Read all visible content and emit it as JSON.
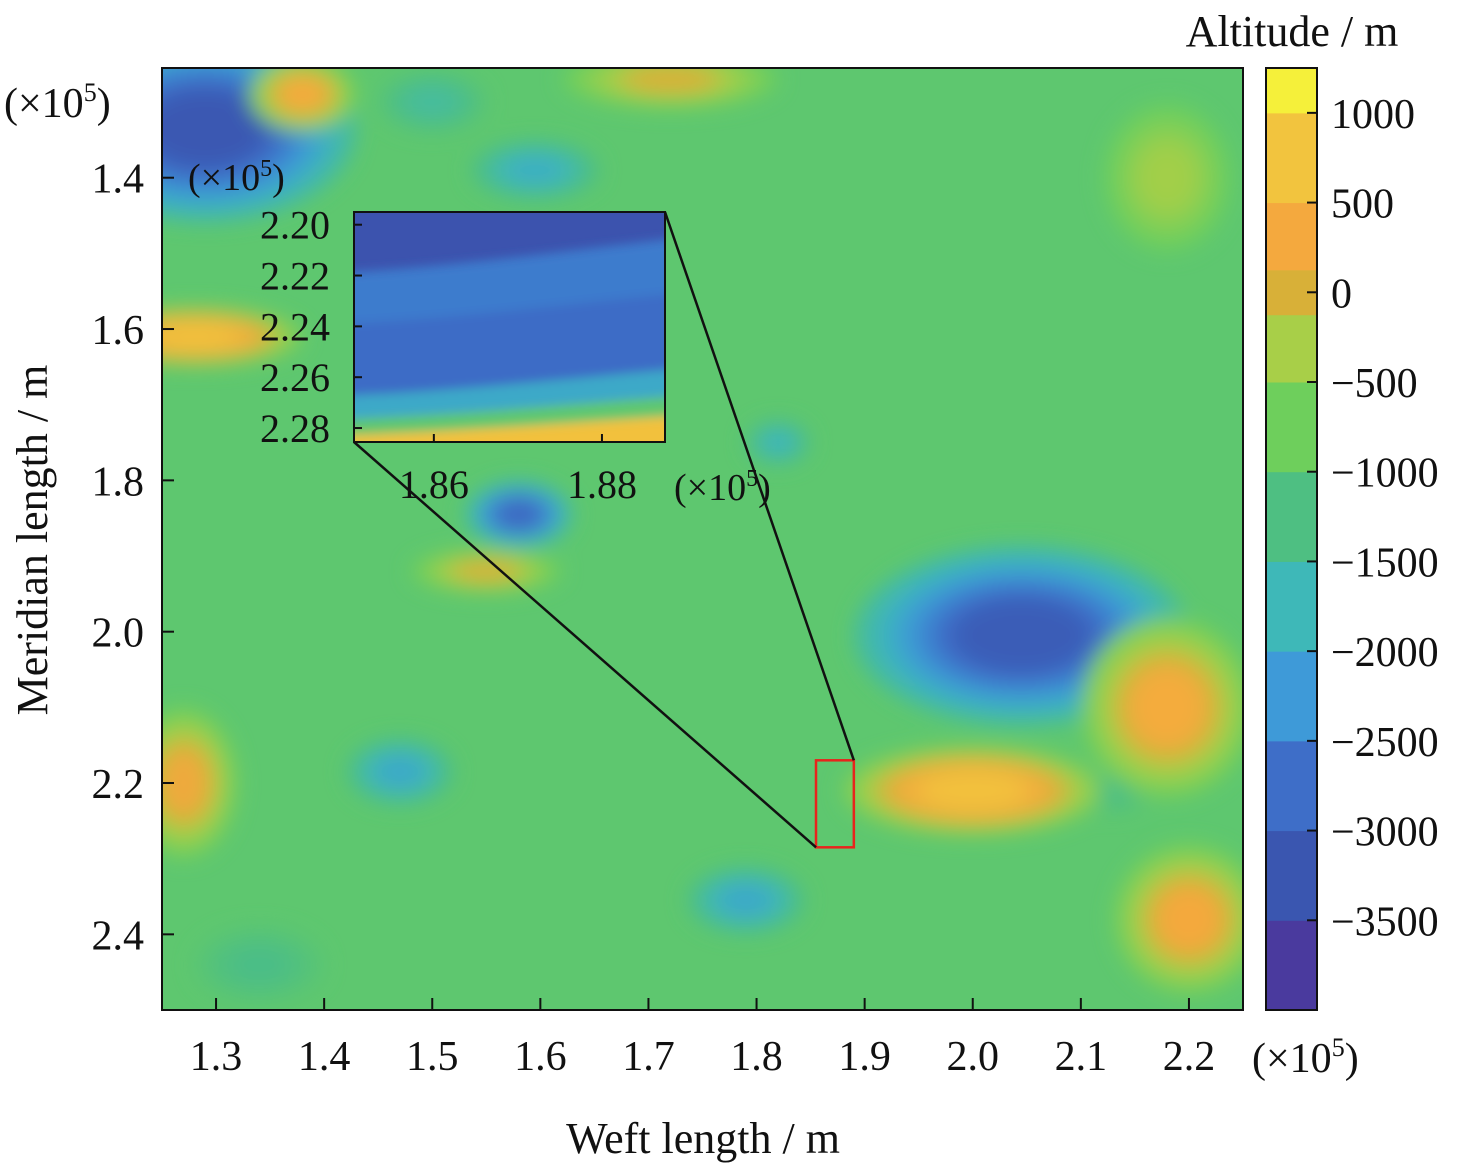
{
  "chart_data": {
    "type": "heatmap",
    "xlabel": "Weft length / m",
    "ylabel": "Meridian length / m",
    "x_multiplier": "(×10",
    "y_multiplier": "(×10",
    "multiplier_exp": "5",
    "multiplier_close": ")",
    "x_ticks": [
      {
        "v": 1.3,
        "t": "1.3"
      },
      {
        "v": 1.4,
        "t": "1.4"
      },
      {
        "v": 1.5,
        "t": "1.5"
      },
      {
        "v": 1.6,
        "t": "1.6"
      },
      {
        "v": 1.7,
        "t": "1.7"
      },
      {
        "v": 1.8,
        "t": "1.8"
      },
      {
        "v": 1.9,
        "t": "1.9"
      },
      {
        "v": 2.0,
        "t": "2.0"
      },
      {
        "v": 2.1,
        "t": "2.1"
      },
      {
        "v": 2.2,
        "t": "2.2"
      }
    ],
    "y_ticks": [
      {
        "v": 1.4,
        "t": "1.4"
      },
      {
        "v": 1.6,
        "t": "1.6"
      },
      {
        "v": 1.8,
        "t": "1.8"
      },
      {
        "v": 2.0,
        "t": "2.0"
      },
      {
        "v": 2.2,
        "t": "2.2"
      },
      {
        "v": 2.4,
        "t": "2.4"
      }
    ],
    "xlim": [
      1.25,
      2.25
    ],
    "ylim": [
      1.255,
      2.5
    ],
    "colorbar": {
      "title": "Altitude / m",
      "range": [
        -4000,
        1250
      ],
      "ticks": [
        {
          "v": 1000,
          "t": "1000"
        },
        {
          "v": 500,
          "t": "500"
        },
        {
          "v": 0,
          "t": "0"
        },
        {
          "v": -500,
          "t": "−500"
        },
        {
          "v": -1000,
          "t": "−1000"
        },
        {
          "v": -1500,
          "t": "−1500"
        },
        {
          "v": -2000,
          "t": "−2000"
        },
        {
          "v": -2500,
          "t": "−2500"
        },
        {
          "v": -3000,
          "t": "−3000"
        },
        {
          "v": -3500,
          "t": "−3500"
        }
      ],
      "colors": [
        {
          "v": 1250,
          "c": "#f5f03a"
        },
        {
          "v": 750,
          "c": "#f2c43e"
        },
        {
          "v": 250,
          "c": "#f4a93e"
        },
        {
          "v": 0,
          "c": "#d8b038"
        },
        {
          "v": -250,
          "c": "#a8cf48"
        },
        {
          "v": -750,
          "c": "#6ecf5c"
        },
        {
          "v": -1250,
          "c": "#4ebf82"
        },
        {
          "v": -1750,
          "c": "#3eb8b8"
        },
        {
          "v": -2250,
          "c": "#3e9ad8"
        },
        {
          "v": -2750,
          "c": "#3e6ec8"
        },
        {
          "v": -3250,
          "c": "#3a56b0"
        },
        {
          "v": -3750,
          "c": "#4a3a9e"
        }
      ]
    },
    "base_altitude": -1000,
    "features": [
      {
        "x": 1.29,
        "y": 1.335,
        "rx": 0.14,
        "ry": 0.125,
        "alt": -3200
      },
      {
        "x": 2.045,
        "y": 2.005,
        "rx": 0.155,
        "ry": 0.12,
        "alt": -3100
      },
      {
        "x": 1.58,
        "y": 1.845,
        "rx": 0.05,
        "ry": 0.045,
        "alt": -2900
      },
      {
        "x": 1.47,
        "y": 2.185,
        "rx": 0.05,
        "ry": 0.045,
        "alt": -2000
      },
      {
        "x": 1.79,
        "y": 2.355,
        "rx": 0.055,
        "ry": 0.045,
        "alt": -2000
      },
      {
        "x": 1.595,
        "y": 1.39,
        "rx": 0.06,
        "ry": 0.04,
        "alt": -1900
      },
      {
        "x": 1.82,
        "y": 1.75,
        "rx": 0.03,
        "ry": 0.03,
        "alt": -1800
      },
      {
        "x": 2.13,
        "y": 2.21,
        "rx": 0.035,
        "ry": 0.03,
        "alt": -1300
      },
      {
        "x": 1.34,
        "y": 2.44,
        "rx": 0.06,
        "ry": 0.05,
        "alt": -1300
      },
      {
        "x": 1.28,
        "y": 1.61,
        "rx": 0.1,
        "ry": 0.04,
        "alt": 700
      },
      {
        "x": 1.38,
        "y": 1.29,
        "rx": 0.05,
        "ry": 0.05,
        "alt": 300
      },
      {
        "x": 1.72,
        "y": 1.27,
        "rx": 0.1,
        "ry": 0.04,
        "alt": 0
      },
      {
        "x": 2.0,
        "y": 2.21,
        "rx": 0.12,
        "ry": 0.06,
        "alt": 700
      },
      {
        "x": 2.18,
        "y": 2.1,
        "rx": 0.08,
        "ry": 0.12,
        "alt": 300
      },
      {
        "x": 2.2,
        "y": 2.38,
        "rx": 0.07,
        "ry": 0.1,
        "alt": 250
      },
      {
        "x": 1.27,
        "y": 2.2,
        "rx": 0.05,
        "ry": 0.1,
        "alt": 200
      },
      {
        "x": 1.55,
        "y": 1.92,
        "rx": 0.07,
        "ry": 0.03,
        "alt": 0
      },
      {
        "x": 2.18,
        "y": 1.4,
        "rx": 0.06,
        "ry": 0.1,
        "alt": -300
      },
      {
        "x": 1.5,
        "y": 1.3,
        "rx": 0.05,
        "ry": 0.04,
        "alt": -1500
      }
    ],
    "highlight_box": {
      "x0": 1.855,
      "x1": 1.89,
      "y0": 2.17,
      "y1": 2.285,
      "color": "#e8241c"
    },
    "inset": {
      "x_ticks": [
        {
          "v": 1.86,
          "t": "1.86"
        },
        {
          "v": 1.88,
          "t": "1.88"
        }
      ],
      "y_ticks": [
        {
          "v": 2.2,
          "t": "2.20"
        },
        {
          "v": 2.22,
          "t": "2.22"
        },
        {
          "v": 2.24,
          "t": "2.24"
        },
        {
          "v": 2.26,
          "t": "2.26"
        },
        {
          "v": 2.28,
          "t": "2.28"
        }
      ],
      "xlim": [
        1.8505,
        1.8875
      ],
      "ylim": [
        2.195,
        2.2855
      ],
      "base_altitude": -3300,
      "bands": [
        {
          "y": 2.212,
          "alt": -2600
        },
        {
          "y": 2.233,
          "alt": -2800
        },
        {
          "y": 2.262,
          "alt": -2000
        },
        {
          "y": 2.272,
          "alt": -1000
        },
        {
          "y": 2.279,
          "alt": 700
        }
      ]
    }
  }
}
